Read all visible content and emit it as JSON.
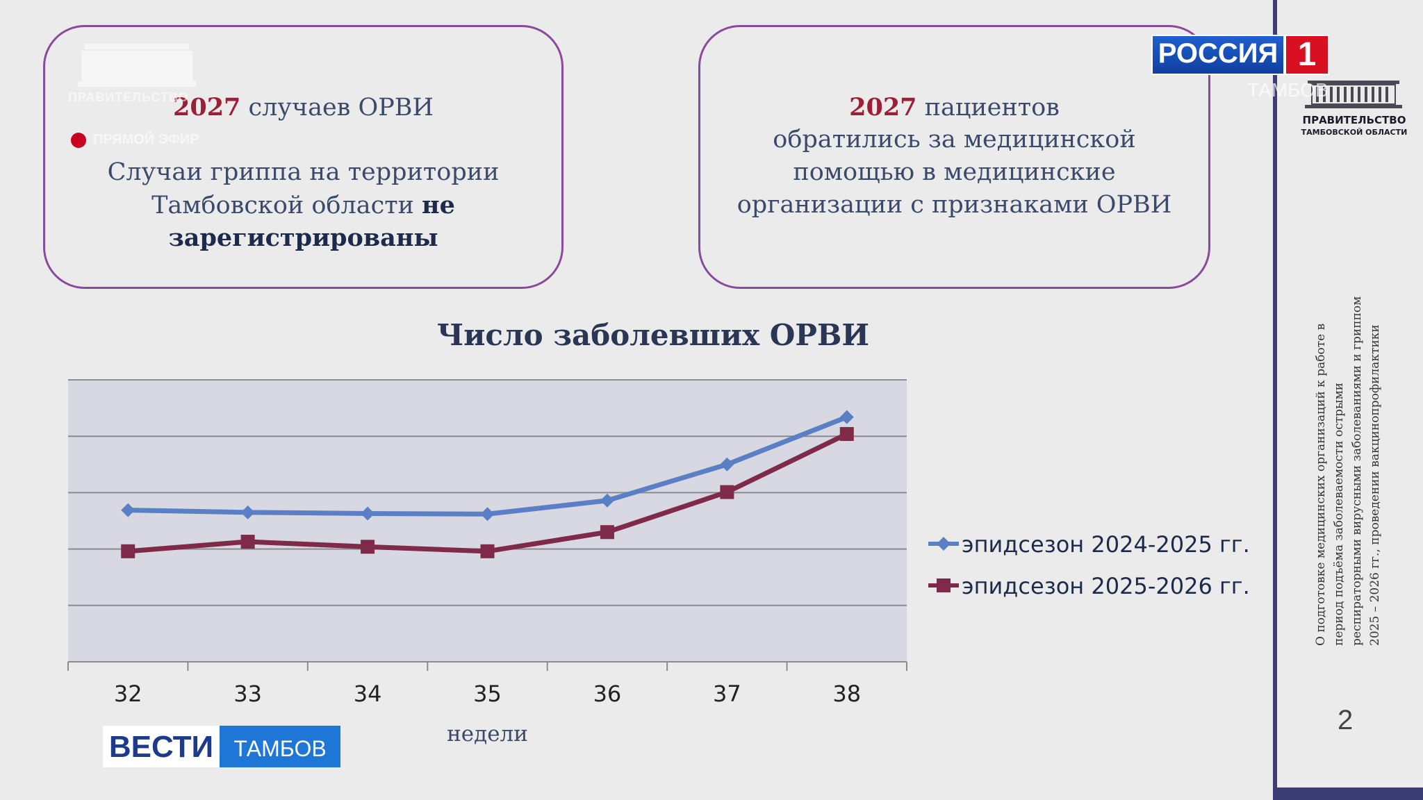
{
  "card_left": {
    "number": "2027",
    "line1_rest": " случаев ОРВИ",
    "line2": "Случаи гриппа на территории",
    "line3_plain": "Тамбовской области ",
    "line3_bold": "не",
    "line4_bold": "зарегистрированы"
  },
  "card_right": {
    "number": "2027",
    "line1_rest": " пациентов",
    "line2": "обратились за медицинской",
    "line3": "помощью в медицинские",
    "line4": "организации с признаками ОРВИ"
  },
  "watermark": {
    "text": "ПРАВИТЕЛЬСТВО",
    "live_label": "ПРЯМОЙ ЭФИР"
  },
  "chart_data": {
    "type": "line",
    "title": "Число заболевших ОРВИ",
    "xlabel": "недели",
    "categories": [
      "32",
      "33",
      "34",
      "35",
      "36",
      "37",
      "38"
    ],
    "ylim": [
      0,
      5
    ],
    "grid": true,
    "y_ticks_labeled": false,
    "legend_position": "right",
    "series": [
      {
        "name": "эпидсезон 2024-2025 гг.",
        "color": "#5b7fc4",
        "marker": "diamond",
        "values": [
          2.69,
          2.65,
          2.63,
          2.62,
          2.86,
          3.5,
          4.34
        ]
      },
      {
        "name": "эпидсезон 2025-2026 гг.",
        "color": "#7e2a48",
        "marker": "square",
        "values": [
          1.96,
          2.13,
          2.04,
          1.96,
          2.3,
          3.01,
          4.04
        ]
      }
    ]
  },
  "channel": {
    "name": "РОССИЯ",
    "number": "1",
    "region": "ТАМБОВ"
  },
  "vesti": {
    "word": "ВЕСТИ",
    "region": "ТАМБОВ"
  },
  "gov_logo": {
    "name": "ПРАВИТЕЛЬСТВО",
    "region": "ТАМБОВСКОЙ ОБЛАСТИ"
  },
  "sidebar": {
    "vertical_text": "О подготовке медицинских организаций к работе в период подъёма заболеваемости острыми респираторными вирусными заболеваниями и гриппом 2025 – 2026 гг., проведении вакцинопрофилактики",
    "page_number": "2"
  }
}
